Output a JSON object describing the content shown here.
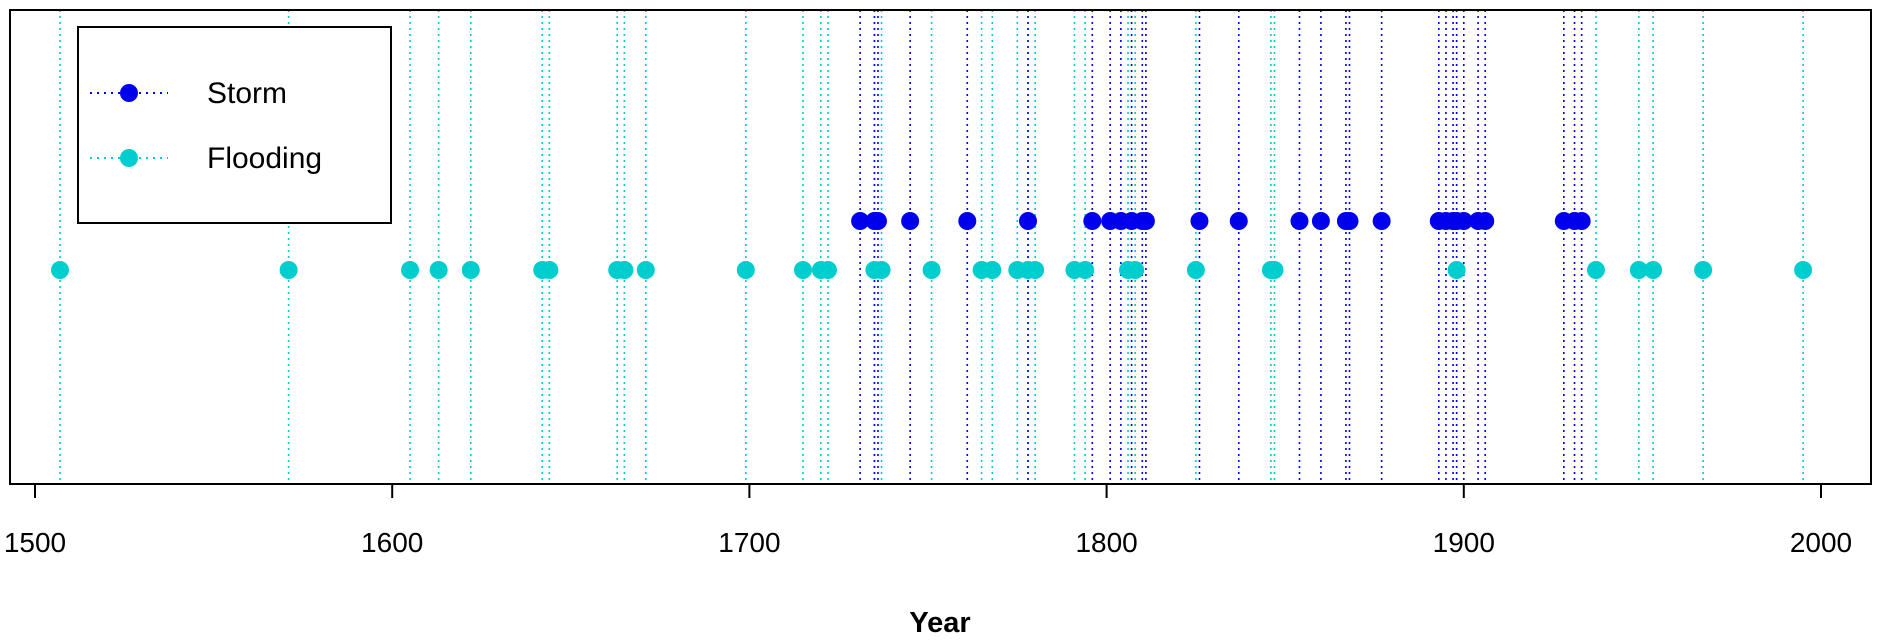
{
  "chart_data": {
    "type": "scatter",
    "xlabel": "Year",
    "ylabel": "",
    "title": "",
    "xlim": [
      1493,
      2014
    ],
    "x_ticks": [
      1500,
      1600,
      1700,
      1800,
      1900,
      2000
    ],
    "x_tick_labels": [
      "1500",
      "1600",
      "1700",
      "1800",
      "1900",
      "2000"
    ],
    "grid": false,
    "legend_position": "top-left",
    "series": [
      {
        "name": "Storm",
        "color": "#0000ee",
        "level": 2,
        "x": [
          1731,
          1735,
          1736,
          1745,
          1761,
          1778,
          1796,
          1801,
          1804,
          1807,
          1810,
          1811,
          1826,
          1837,
          1854,
          1860,
          1867,
          1868,
          1877,
          1893,
          1895,
          1897,
          1898,
          1900,
          1904,
          1906,
          1928,
          1931,
          1933
        ]
      },
      {
        "name": "Flooding",
        "color": "#00cdcd",
        "level": 1,
        "x": [
          1507,
          1571,
          1605,
          1613,
          1622,
          1642,
          1644,
          1663,
          1665,
          1671,
          1699,
          1715,
          1720,
          1722,
          1735,
          1737,
          1751,
          1765,
          1768,
          1775,
          1778,
          1780,
          1791,
          1794,
          1806,
          1808,
          1825,
          1846,
          1847,
          1898,
          1937,
          1949,
          1953,
          1967,
          1995
        ]
      }
    ]
  }
}
